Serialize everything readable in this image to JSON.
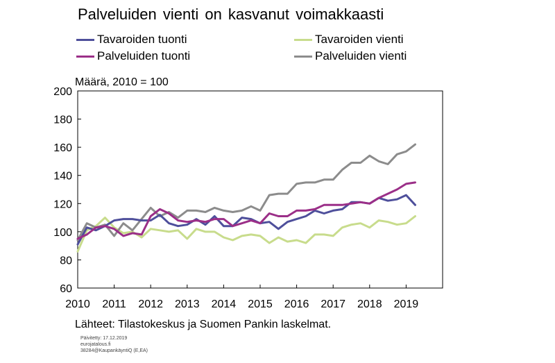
{
  "chart_data": {
    "type": "line",
    "title": "Palveluiden vienti on kasvanut voimakkaasti",
    "ylabel": "Määrä, 2010 = 100",
    "xlabel": "",
    "xlim": [
      2010,
      2020
    ],
    "ylim": [
      60,
      200
    ],
    "x_ticks": [
      "2010",
      "2011",
      "2012",
      "2013",
      "2014",
      "2015",
      "2016",
      "2017",
      "2018",
      "2019"
    ],
    "y_ticks": [
      "60",
      "80",
      "100",
      "120",
      "140",
      "160",
      "180",
      "200"
    ],
    "grid": false,
    "legend_position": "top",
    "x": [
      2010.0,
      2010.25,
      2010.5,
      2010.75,
      2011.0,
      2011.25,
      2011.5,
      2011.75,
      2012.0,
      2012.25,
      2012.5,
      2012.75,
      2013.0,
      2013.25,
      2013.5,
      2013.75,
      2014.0,
      2014.25,
      2014.5,
      2014.75,
      2015.0,
      2015.25,
      2015.5,
      2015.75,
      2016.0,
      2016.25,
      2016.5,
      2016.75,
      2017.0,
      2017.25,
      2017.5,
      2017.75,
      2018.0,
      2018.25,
      2018.5,
      2018.75,
      2019.0,
      2019.25
    ],
    "series": [
      {
        "name": "Tavaroiden tuonti",
        "color": "#4e4f9b",
        "values": [
          91,
          103,
          101,
          104,
          108,
          109,
          109,
          108,
          108,
          112,
          106,
          104,
          105,
          109,
          105,
          111,
          104,
          104,
          110,
          109,
          106,
          107,
          102,
          107,
          109,
          111,
          115,
          113,
          115,
          116,
          121,
          121,
          120,
          124,
          122,
          123,
          126,
          119
        ]
      },
      {
        "name": "Tavaroiden vienti",
        "color": "#c8dc8c",
        "values": [
          86,
          101,
          104,
          110,
          103,
          99,
          100,
          96,
          102,
          101,
          100,
          101,
          95,
          102,
          100,
          100,
          96,
          94,
          97,
          98,
          97,
          92,
          96,
          93,
          94,
          92,
          98,
          98,
          97,
          103,
          105,
          106,
          103,
          108,
          107,
          105,
          106,
          111
        ]
      },
      {
        "name": "Palveluiden tuonti",
        "color": "#9b2f88",
        "values": [
          95,
          98,
          103,
          104,
          102,
          97,
          99,
          98,
          111,
          116,
          113,
          108,
          107,
          108,
          107,
          109,
          109,
          104,
          106,
          108,
          106,
          113,
          111,
          111,
          115,
          115,
          116,
          119,
          119,
          119,
          120,
          121,
          120,
          124,
          127,
          130,
          134,
          135
        ]
      },
      {
        "name": "Palveluiden vienti",
        "color": "#8c8c8c",
        "values": [
          94,
          106,
          103,
          105,
          97,
          106,
          101,
          109,
          117,
          111,
          114,
          110,
          115,
          115,
          114,
          117,
          115,
          114,
          115,
          118,
          115,
          126,
          127,
          127,
          134,
          135,
          135,
          137,
          137,
          144,
          149,
          149,
          154,
          150,
          148,
          155,
          157,
          162
        ]
      }
    ]
  },
  "source": "Lähteet: Tilastokeskus ja Suomen Pankin laskelmat.",
  "meta": {
    "updated": "Päivitetty: 17.12.2019",
    "site": "eurojatalous.fi",
    "code": "38284@KaupankäyntiQ   (E,EA)"
  }
}
